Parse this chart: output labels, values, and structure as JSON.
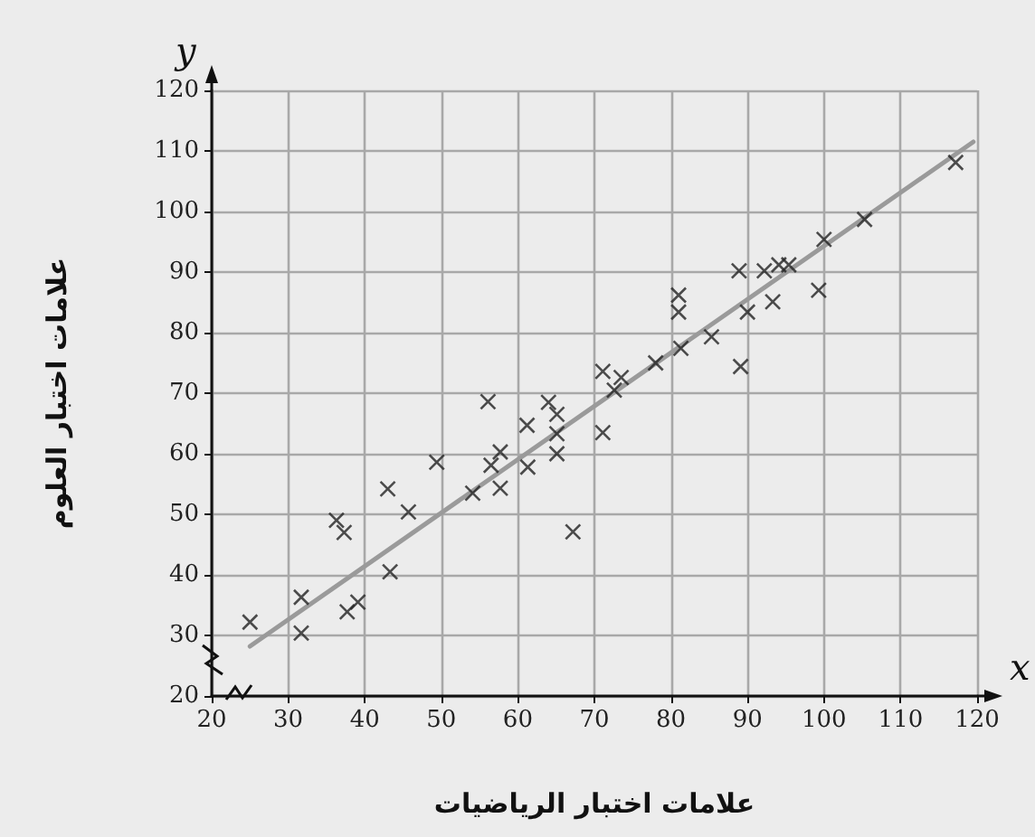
{
  "chart_data": {
    "type": "scatter",
    "xlabel": "علامات اختبار الرياضيات",
    "ylabel": "علامات اختبار العلوم",
    "annotations": [
      "x",
      "y"
    ],
    "xlim": [
      20,
      120
    ],
    "xticks": [
      20,
      30,
      40,
      50,
      60,
      70,
      80,
      90,
      100,
      110,
      120
    ],
    "ylim": [
      20,
      120
    ],
    "yticks": [
      20,
      30,
      40,
      50,
      60,
      70,
      80,
      90,
      100,
      110,
      120
    ],
    "grid": true,
    "marker": "cross",
    "series": [
      {
        "color": "#222222",
        "x": [
          25,
          31.7,
          31.7,
          36.3,
          37.3,
          37.7,
          39.1,
          43,
          43.3,
          45.7,
          49.4,
          54.1,
          56.1,
          56.5,
          57.7,
          57.7,
          61.2,
          61.3,
          64,
          65.1,
          65.1,
          65.1,
          67.2,
          71.1,
          71.1,
          72.6,
          73.5,
          78,
          81,
          81,
          81.3,
          85.3,
          88.9,
          89.1,
          90,
          92.2,
          93.3,
          94.1,
          95.4,
          99.3,
          100,
          105.3,
          117.2
        ],
        "values": [
          32.2,
          36.3,
          30.4,
          49,
          47,
          33.9,
          35.5,
          54.2,
          40.5,
          50.4,
          58.6,
          53.5,
          68.6,
          58.1,
          60.3,
          54.3,
          64.7,
          57.8,
          68.5,
          66.5,
          63.3,
          60,
          47.1,
          73.6,
          63.5,
          70.5,
          72.6,
          75,
          86.2,
          83.4,
          77.4,
          79.3,
          90.2,
          74.4,
          83.4,
          90.2,
          85.1,
          91.2,
          91.2,
          87,
          95.4,
          98.7,
          108.1
        ]
      },
      {
        "type": "line",
        "color": "#9a9a9a",
        "marker": "none",
        "x": [
          25,
          119.5
        ],
        "values": [
          28.2,
          111.5
        ]
      }
    ]
  }
}
